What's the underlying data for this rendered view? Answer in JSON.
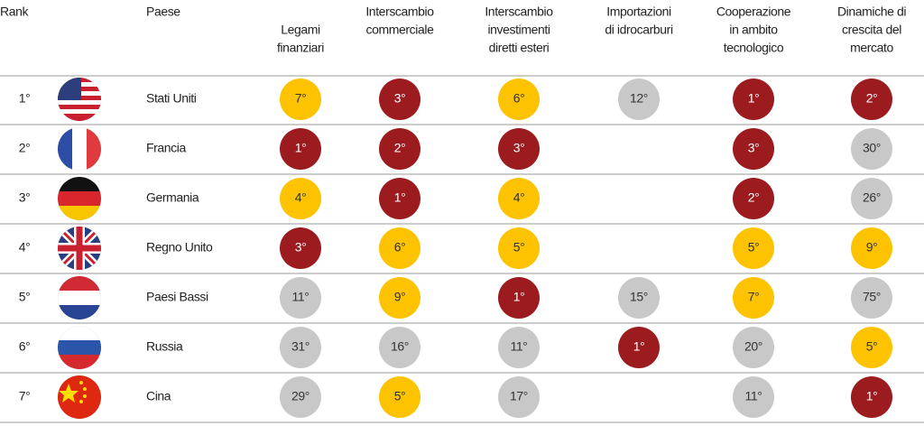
{
  "header": {
    "rank": "Rank",
    "country": "Paese",
    "columns": [
      [
        "Legami",
        "finanziari"
      ],
      [
        "Interscambio",
        "commerciale"
      ],
      [
        "Interscambio",
        "investimenti",
        "diretti esteri"
      ],
      [
        "Importazioni",
        "di idrocarburi"
      ],
      [
        "Cooperazione",
        "in ambito",
        "tecnologico"
      ],
      [
        "Dinamiche di",
        "crescita del",
        "mercato"
      ]
    ]
  },
  "table": {
    "rows": [
      {
        "rank": "1°",
        "country": "Stati Uniti",
        "cells": [
          {
            "label": "7°",
            "color": "#fdc300"
          },
          {
            "label": "3°",
            "color": "#9b1b1f"
          },
          {
            "label": "6°",
            "color": "#fdc300"
          },
          {
            "label": "12°",
            "color": "#c8c8c8"
          },
          {
            "label": "1°",
            "color": "#9b1b1f"
          },
          {
            "label": "2°",
            "color": "#9b1b1f"
          }
        ]
      },
      {
        "rank": "2°",
        "country": "Francia",
        "cells": [
          {
            "label": "1°",
            "color": "#9b1b1f"
          },
          {
            "label": "2°",
            "color": "#9b1b1f"
          },
          {
            "label": "3°",
            "color": "#9b1b1f"
          },
          null,
          {
            "label": "3°",
            "color": "#9b1b1f"
          },
          {
            "label": "30°",
            "color": "#c8c8c8"
          }
        ]
      },
      {
        "rank": "3°",
        "country": "Germania",
        "cells": [
          {
            "label": "4°",
            "color": "#fdc300"
          },
          {
            "label": "1°",
            "color": "#9b1b1f"
          },
          {
            "label": "4°",
            "color": "#fdc300"
          },
          null,
          {
            "label": "2°",
            "color": "#9b1b1f"
          },
          {
            "label": "26°",
            "color": "#c8c8c8"
          }
        ]
      },
      {
        "rank": "4°",
        "country": "Regno Unito",
        "cells": [
          {
            "label": "3°",
            "color": "#9b1b1f"
          },
          {
            "label": "6°",
            "color": "#fdc300"
          },
          {
            "label": "5°",
            "color": "#fdc300"
          },
          null,
          {
            "label": "5°",
            "color": "#fdc300"
          },
          {
            "label": "9°",
            "color": "#fdc300"
          }
        ]
      },
      {
        "rank": "5°",
        "country": "Paesi Bassi",
        "cells": [
          {
            "label": "11°",
            "color": "#c8c8c8"
          },
          {
            "label": "9°",
            "color": "#fdc300"
          },
          {
            "label": "1°",
            "color": "#9b1b1f"
          },
          {
            "label": "15°",
            "color": "#c8c8c8"
          },
          {
            "label": "7°",
            "color": "#fdc300"
          },
          {
            "label": "75°",
            "color": "#c8c8c8"
          }
        ]
      },
      {
        "rank": "6°",
        "country": "Russia",
        "cells": [
          {
            "label": "31°",
            "color": "#c8c8c8"
          },
          {
            "label": "16°",
            "color": "#c8c8c8"
          },
          {
            "label": "11°",
            "color": "#c8c8c8"
          },
          {
            "label": "1°",
            "color": "#9b1b1f"
          },
          {
            "label": "20°",
            "color": "#c8c8c8"
          },
          {
            "label": "5°",
            "color": "#fdc300"
          }
        ]
      },
      {
        "rank": "7°",
        "country": "Cina",
        "cells": [
          {
            "label": "29°",
            "color": "#c8c8c8"
          },
          {
            "label": "5°",
            "color": "#fdc300"
          },
          {
            "label": "17°",
            "color": "#c8c8c8"
          },
          null,
          {
            "label": "11°",
            "color": "#c8c8c8"
          },
          {
            "label": "1°",
            "color": "#9b1b1f"
          }
        ]
      }
    ]
  }
}
